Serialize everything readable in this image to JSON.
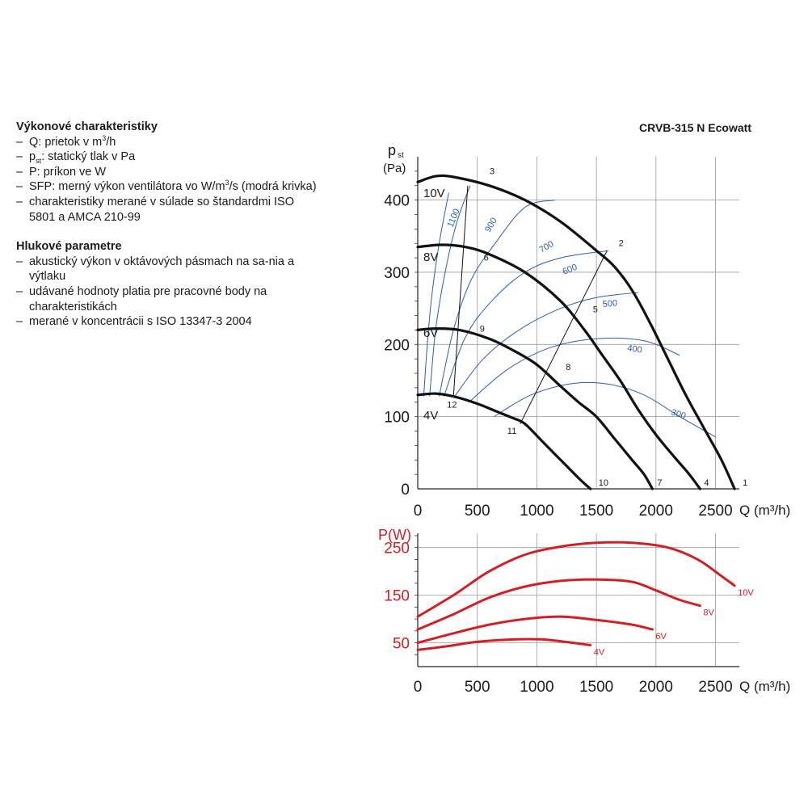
{
  "left_text": {
    "performance_title": "Výkonové charakteristiky",
    "performance_items": [
      {
        "pre": "Q: prietok v m",
        "sup": "3",
        "post": "/h"
      },
      {
        "pre": "p",
        "sub": "st",
        "post": ": statický tlak v Pa"
      },
      {
        "pre": "P: príkon ve W"
      },
      {
        "pre": "SFP: merný výkon ventilátora vo W/m",
        "sup": "3",
        "post": "/s (modrá krivka)"
      },
      {
        "pre": "charakteristiky merané v súlade so štandardmi ISO 5801 a AMCA 210-99"
      }
    ],
    "noise_title": "Hlukové parametre",
    "noise_items": [
      "akustický výkon v oktávových pásmach na sa-nia a výtlaku",
      "udávané hodnoty platia pre pracovné body na charakteristikách",
      "merané v koncentrácii s ISO 13347-3 2004"
    ]
  },
  "model_title": "CRVB-315 N Ecowatt",
  "colors": {
    "pressure": "#111111",
    "sfp": "#2f5ea3",
    "power": "#d21f26",
    "grid": "#9a9a9a"
  },
  "chart_data": [
    {
      "type": "line",
      "title": "CRVB-315 N Ecowatt",
      "ylabel": "p",
      "ylabel_sub": "st",
      "ylabel_unit": "(Pa)",
      "xlabel": "Q (m³/h)",
      "xlim": [
        0,
        2700
      ],
      "ylim": [
        0,
        460
      ],
      "xticks": [
        0,
        500,
        1000,
        1500,
        2000,
        2500
      ],
      "yticks": [
        0,
        100,
        200,
        300,
        400
      ],
      "grid": true,
      "series": [
        {
          "name": "10V",
          "points": [
            [
              0,
              425
            ],
            [
              150,
              433
            ],
            [
              300,
              432
            ],
            [
              600,
              420
            ],
            [
              900,
              400
            ],
            [
              1200,
              370
            ],
            [
              1500,
              330
            ],
            [
              1650,
              308
            ],
            [
              1800,
              275
            ],
            [
              1950,
              230
            ],
            [
              2100,
              180
            ],
            [
              2250,
              130
            ],
            [
              2400,
              85
            ],
            [
              2550,
              40
            ],
            [
              2660,
              0
            ]
          ]
        },
        {
          "name": "8V",
          "points": [
            [
              0,
              335
            ],
            [
              200,
              338
            ],
            [
              400,
              335
            ],
            [
              600,
              325
            ],
            [
              900,
              300
            ],
            [
              1200,
              260
            ],
            [
              1400,
              220
            ],
            [
              1550,
              185
            ],
            [
              1700,
              150
            ],
            [
              1850,
              110
            ],
            [
              2000,
              75
            ],
            [
              2150,
              45
            ],
            [
              2280,
              20
            ],
            [
              2370,
              0
            ]
          ]
        },
        {
          "name": "6V",
          "points": [
            [
              0,
              220
            ],
            [
              150,
              222
            ],
            [
              350,
              220
            ],
            [
              600,
              208
            ],
            [
              800,
              192
            ],
            [
              1000,
              172
            ],
            [
              1200,
              142
            ],
            [
              1350,
              120
            ],
            [
              1500,
              100
            ],
            [
              1650,
              70
            ],
            [
              1800,
              40
            ],
            [
              1900,
              20
            ],
            [
              1970,
              0
            ]
          ]
        },
        {
          "name": "4V",
          "points": [
            [
              0,
              130
            ],
            [
              150,
              132
            ],
            [
              300,
              128
            ],
            [
              500,
              118
            ],
            [
              650,
              108
            ],
            [
              800,
              98
            ],
            [
              900,
              90
            ],
            [
              1050,
              65
            ],
            [
              1200,
              40
            ],
            [
              1350,
              15
            ],
            [
              1450,
              0
            ]
          ]
        }
      ],
      "sfp_curves": [
        {
          "label": "1100",
          "points": [
            [
              50,
              128
            ],
            [
              80,
              200
            ],
            [
              120,
              270
            ],
            [
              180,
              340
            ],
            [
              260,
              410
            ]
          ]
        },
        {
          "label": "900",
          "points": [
            [
              100,
              128
            ],
            [
              150,
              220
            ],
            [
              230,
              300
            ],
            [
              330,
              370
            ],
            [
              440,
              420
            ]
          ]
        },
        {
          "label": "700",
          "points": [
            [
              180,
              128
            ],
            [
              300,
              220
            ],
            [
              450,
              290
            ],
            [
              650,
              340
            ],
            [
              900,
              390
            ],
            [
              1150,
              400
            ]
          ]
        },
        {
          "label": "600",
          "points": [
            [
              220,
              128
            ],
            [
              400,
              210
            ],
            [
              620,
              260
            ],
            [
              900,
              300
            ],
            [
              1200,
              320
            ],
            [
              1600,
              330
            ]
          ]
        },
        {
          "label": "500",
          "points": [
            [
              310,
              128
            ],
            [
              550,
              180
            ],
            [
              850,
              220
            ],
            [
              1200,
              250
            ],
            [
              1500,
              265
            ],
            [
              1850,
              272
            ]
          ]
        },
        {
          "label": "400",
          "points": [
            [
              430,
              120
            ],
            [
              750,
              165
            ],
            [
              1100,
              195
            ],
            [
              1500,
              208
            ],
            [
              1900,
              205
            ],
            [
              2200,
              185
            ]
          ]
        },
        {
          "label": "300",
          "points": [
            [
              640,
              100
            ],
            [
              950,
              130
            ],
            [
              1300,
              146
            ],
            [
              1600,
              145
            ],
            [
              1900,
              130
            ],
            [
              2200,
              100
            ],
            [
              2500,
              72
            ]
          ]
        }
      ],
      "system_lines": [
        {
          "points": [
            [
              300,
              128
            ],
            [
              420,
              420
            ]
          ]
        },
        {
          "points": [
            [
              860,
              90
            ],
            [
              1590,
              330
            ]
          ]
        }
      ],
      "points": [
        {
          "label": "1",
          "q": 2660,
          "p": 0
        },
        {
          "label": "2",
          "q": 1620,
          "p": 332
        },
        {
          "label": "3",
          "q": 590,
          "p": 427
        },
        {
          "label": "4",
          "q": 2370,
          "p": 0
        },
        {
          "label": "5",
          "q": 1430,
          "p": 240
        },
        {
          "label": "6",
          "q": 540,
          "p": 325
        },
        {
          "label": "7",
          "q": 1970,
          "p": 0
        },
        {
          "label": "8",
          "q": 1230,
          "p": 160
        },
        {
          "label": "9",
          "q": 480,
          "p": 220
        },
        {
          "label": "10",
          "q": 1450,
          "p": 0
        },
        {
          "label": "11",
          "q": 860,
          "p": 92
        },
        {
          "label": "12",
          "q": 300,
          "p": 128
        }
      ]
    },
    {
      "type": "line",
      "ylabel": "P(W)",
      "xlabel": "Q (m³/h)",
      "xlim": [
        0,
        2700
      ],
      "ylim": [
        0,
        280
      ],
      "xticks": [
        0,
        500,
        1000,
        1500,
        2000,
        2500
      ],
      "yticks": [
        50,
        150,
        250
      ],
      "grid": true,
      "series": [
        {
          "name": "10V",
          "points": [
            [
              0,
              105
            ],
            [
              300,
              150
            ],
            [
              600,
              200
            ],
            [
              900,
              235
            ],
            [
              1200,
              252
            ],
            [
              1500,
              260
            ],
            [
              1800,
              260
            ],
            [
              2100,
              250
            ],
            [
              2350,
              225
            ],
            [
              2550,
              190
            ],
            [
              2660,
              170
            ]
          ]
        },
        {
          "name": "8V",
          "points": [
            [
              0,
              78
            ],
            [
              300,
              110
            ],
            [
              600,
              145
            ],
            [
              900,
              168
            ],
            [
              1200,
              180
            ],
            [
              1500,
              183
            ],
            [
              1800,
              178
            ],
            [
              2000,
              160
            ],
            [
              2200,
              140
            ],
            [
              2370,
              128
            ]
          ]
        },
        {
          "name": "6V",
          "points": [
            [
              0,
              50
            ],
            [
              300,
              70
            ],
            [
              600,
              88
            ],
            [
              900,
              100
            ],
            [
              1200,
              105
            ],
            [
              1500,
              98
            ],
            [
              1800,
              88
            ],
            [
              1970,
              78
            ]
          ]
        },
        {
          "name": "4V",
          "points": [
            [
              0,
              35
            ],
            [
              250,
              43
            ],
            [
              500,
              52
            ],
            [
              800,
              57
            ],
            [
              1050,
              57
            ],
            [
              1300,
              50
            ],
            [
              1450,
              45
            ]
          ]
        }
      ]
    }
  ]
}
